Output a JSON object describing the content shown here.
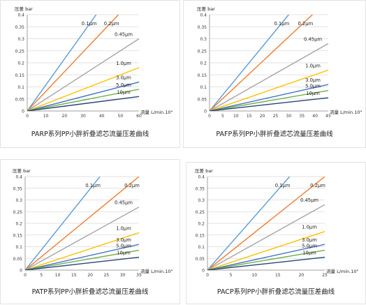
{
  "panels": [
    {
      "caption": "PARP系列PP小胖折叠滤芯流量压差曲线",
      "ylabel": "压差 bar",
      "xlabel": "流量 L/min.10\"",
      "chart_data": {
        "type": "line",
        "ylim": [
          0,
          0.4
        ],
        "xlim": [
          0,
          60
        ],
        "yticks": [
          "0",
          "0.05",
          "0.1",
          "0.15",
          "0.2",
          "0.25",
          "0.3",
          "0.35",
          "0.4"
        ],
        "xticks": [
          "0",
          "10",
          "20",
          "30",
          "40",
          "50",
          "60"
        ],
        "grid": true,
        "series": [
          {
            "name": "0.1μm",
            "color": "#5b9bd5",
            "x": [
              0,
              37
            ],
            "y": [
              0,
              0.4
            ]
          },
          {
            "name": "0.2μm",
            "color": "#ed7d31",
            "x": [
              0,
              49
            ],
            "y": [
              0,
              0.4
            ]
          },
          {
            "name": "0.45μm",
            "color": "#a5a5a5",
            "x": [
              0,
              60
            ],
            "y": [
              0,
              0.3
            ]
          },
          {
            "name": "1.0μm",
            "color": "#ffc000",
            "x": [
              0,
              60
            ],
            "y": [
              0,
              0.18
            ]
          },
          {
            "name": "3.0μm",
            "color": "#4472c4",
            "x": [
              0,
              60
            ],
            "y": [
              0,
              0.12
            ]
          },
          {
            "name": "5.0μm",
            "color": "#70ad47",
            "x": [
              0,
              60
            ],
            "y": [
              0,
              0.09
            ]
          },
          {
            "name": "10μm",
            "color": "#264478",
            "x": [
              0,
              60
            ],
            "y": [
              0,
              0.06
            ]
          }
        ]
      }
    },
    {
      "caption": "PAFP系列PP小胖折叠滤芯流量压差曲线",
      "ylabel": "压差 bar",
      "xlabel": "流量 L/min.10\"",
      "chart_data": {
        "type": "line",
        "ylim": [
          0,
          0.4
        ],
        "xlim": [
          0,
          45
        ],
        "yticks": [
          "0",
          "0.05",
          "0.1",
          "0.15",
          "0.2",
          "0.25",
          "0.3",
          "0.35",
          "0.4"
        ],
        "xticks": [
          "0",
          "5",
          "10",
          "15",
          "20",
          "25",
          "30",
          "35",
          "40",
          "45"
        ],
        "grid": true,
        "series": [
          {
            "name": "0.1μm",
            "color": "#5b9bd5",
            "x": [
              0,
              30
            ],
            "y": [
              0,
              0.4
            ]
          },
          {
            "name": "0.2μm",
            "color": "#ed7d31",
            "x": [
              0,
              39
            ],
            "y": [
              0,
              0.4
            ]
          },
          {
            "name": "0.45μm",
            "color": "#a5a5a5",
            "x": [
              0,
              45
            ],
            "y": [
              0,
              0.28
            ]
          },
          {
            "name": "1.0μm",
            "color": "#ffc000",
            "x": [
              0,
              45
            ],
            "y": [
              0,
              0.17
            ]
          },
          {
            "name": "3.0μm",
            "color": "#4472c4",
            "x": [
              0,
              45
            ],
            "y": [
              0,
              0.11
            ]
          },
          {
            "name": "5.0μm",
            "color": "#70ad47",
            "x": [
              0,
              45
            ],
            "y": [
              0,
              0.085
            ]
          },
          {
            "name": "10μm",
            "color": "#264478",
            "x": [
              0,
              45
            ],
            "y": [
              0,
              0.055
            ]
          }
        ]
      }
    },
    {
      "caption": "PATP系列PP小胖折叠滤芯流量压差曲线",
      "ylabel": "压差 bar",
      "xlabel": "流量 L/min.10\"",
      "chart_data": {
        "type": "line",
        "ylim": [
          0,
          0.4
        ],
        "xlim": [
          0,
          35
        ],
        "yticks": [
          "0",
          "0.05",
          "0.1",
          "0.15",
          "0.2",
          "0.25",
          "0.3",
          "0.35",
          "0.4"
        ],
        "xticks": [
          "0",
          "5",
          "10",
          "15",
          "20",
          "25",
          "30",
          "35"
        ],
        "grid": true,
        "series": [
          {
            "name": "0.1μm",
            "color": "#5b9bd5",
            "x": [
              0,
              23
            ],
            "y": [
              0,
              0.4
            ]
          },
          {
            "name": "0.2μm",
            "color": "#ed7d31",
            "x": [
              0,
              35
            ],
            "y": [
              0,
              0.4
            ]
          },
          {
            "name": "0.45μm",
            "color": "#a5a5a5",
            "x": [
              0,
              35
            ],
            "y": [
              0,
              0.27
            ]
          },
          {
            "name": "1.0μm",
            "color": "#ffc000",
            "x": [
              0,
              35
            ],
            "y": [
              0,
              0.16
            ]
          },
          {
            "name": "3.0μm",
            "color": "#4472c4",
            "x": [
              0,
              35
            ],
            "y": [
              0,
              0.11
            ]
          },
          {
            "name": "5.0μm",
            "color": "#70ad47",
            "x": [
              0,
              35
            ],
            "y": [
              0,
              0.085
            ]
          },
          {
            "name": "10μm",
            "color": "#264478",
            "x": [
              0,
              35
            ],
            "y": [
              0,
              0.055
            ]
          }
        ]
      }
    },
    {
      "caption": "PACP系列PP小胖折叠滤芯流量压差曲线",
      "ylabel": "压差 bar",
      "xlabel": "流量 L/min.10\"",
      "chart_data": {
        "type": "line",
        "ylim": [
          0,
          0.4
        ],
        "xlim": [
          0,
          25
        ],
        "yticks": [
          "0",
          "0.05",
          "0.1",
          "0.15",
          "0.2",
          "0.25",
          "0.3",
          "0.35",
          "0.4"
        ],
        "xticks": [
          "0",
          "5",
          "10",
          "15",
          "20",
          "25"
        ],
        "grid": true,
        "series": [
          {
            "name": "0.1μm",
            "color": "#5b9bd5",
            "x": [
              0,
              17.5
            ],
            "y": [
              0,
              0.4
            ]
          },
          {
            "name": "0.2μm",
            "color": "#ed7d31",
            "x": [
              0,
              25
            ],
            "y": [
              0,
              0.4
            ]
          },
          {
            "name": "0.45μm",
            "color": "#a5a5a5",
            "x": [
              0,
              25
            ],
            "y": [
              0,
              0.28
            ]
          },
          {
            "name": "1.0μm",
            "color": "#ffc000",
            "x": [
              0,
              25
            ],
            "y": [
              0,
              0.165
            ]
          },
          {
            "name": "3.0μm",
            "color": "#4472c4",
            "x": [
              0,
              25
            ],
            "y": [
              0,
              0.11
            ]
          },
          {
            "name": "5.0μm",
            "color": "#70ad47",
            "x": [
              0,
              25
            ],
            "y": [
              0,
              0.085
            ]
          },
          {
            "name": "10μm",
            "color": "#264478",
            "x": [
              0,
              25
            ],
            "y": [
              0,
              0.055
            ]
          }
        ]
      }
    }
  ]
}
